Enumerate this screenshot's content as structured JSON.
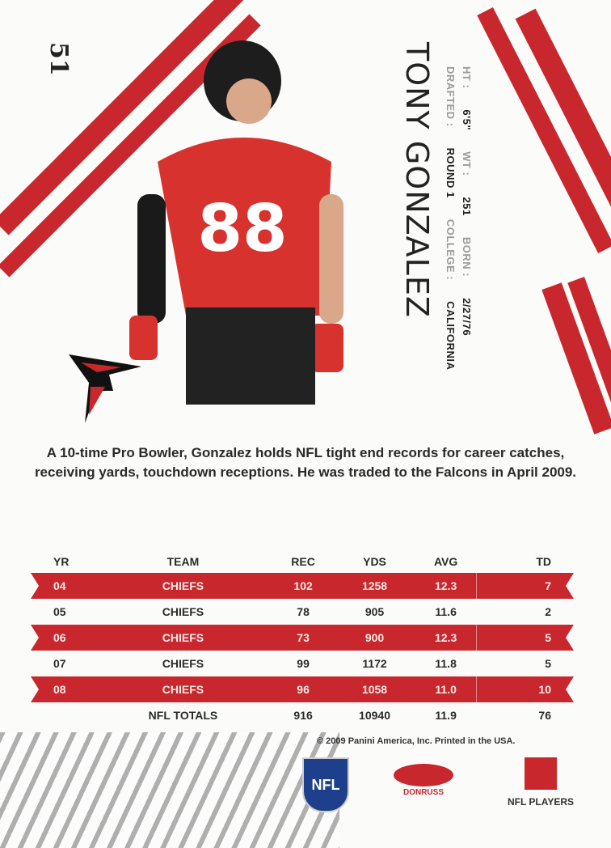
{
  "card_number": "51",
  "player": {
    "name": "TONY GONZALEZ",
    "line1": [
      {
        "label": "HT :",
        "value": "6'5\""
      },
      {
        "label": "WT :",
        "value": "251"
      },
      {
        "label": "BORN :",
        "value": "2/27/76"
      }
    ],
    "line2": [
      {
        "label": "DRAFTED :",
        "value": "ROUND 1"
      },
      {
        "label": "COLLEGE :",
        "value": "CALIFORNIA"
      }
    ],
    "jersey_number": "88"
  },
  "bio": "A 10-time Pro Bowler, Gonzalez holds NFL tight end records for career catches, receiving yards, touchdown receptions. He was traded to the Falcons in April 2009.",
  "stats": {
    "headers": [
      "YR",
      "TEAM",
      "REC",
      "YDS",
      "AVG",
      "TD"
    ],
    "rows": [
      [
        "04",
        "CHIEFS",
        "102",
        "1258",
        "12.3",
        "7"
      ],
      [
        "05",
        "CHIEFS",
        "78",
        "905",
        "11.6",
        "2"
      ],
      [
        "06",
        "CHIEFS",
        "73",
        "900",
        "12.3",
        "5"
      ],
      [
        "07",
        "CHIEFS",
        "99",
        "1172",
        "11.8",
        "5"
      ],
      [
        "08",
        "CHIEFS",
        "96",
        "1058",
        "11.0",
        "10"
      ]
    ],
    "totals": [
      "",
      "NFL TOTALS",
      "916",
      "10940",
      "11.9",
      "76"
    ]
  },
  "copyright": "© 2009 Panini America, Inc. Printed in the USA.",
  "logos": {
    "nfl": "NFL",
    "donruss": "DONRUSS",
    "nfl_players": "NFL PLAYERS"
  },
  "colors": {
    "accent": "#c8282d"
  }
}
